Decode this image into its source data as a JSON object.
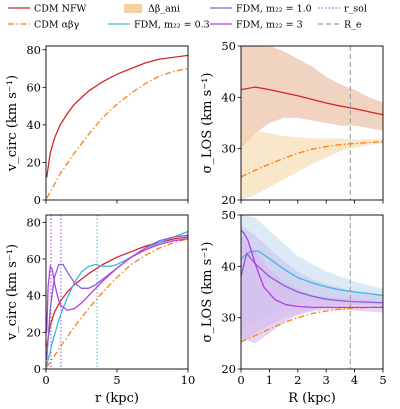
{
  "legend": [
    {
      "key": "cdm_nfw",
      "label": "CDM NFW",
      "color": "#d62728",
      "style": "solid"
    },
    {
      "key": "cdm_abg",
      "label": "CDM αβγ",
      "color": "#ff7f0e",
      "style": "dashdot"
    },
    {
      "key": "delta_beta",
      "label": "Δβ_ani",
      "color": "#f5cfa0",
      "style": "patch"
    },
    {
      "key": "fdm_03",
      "label": "FDM, m₂₂ = 0.3",
      "color": "#3fb6e8",
      "style": "solid"
    },
    {
      "key": "fdm_10",
      "label": "FDM, m₂₂ = 1.0",
      "color": "#8a5fd6",
      "style": "solid"
    },
    {
      "key": "fdm_3",
      "label": "FDM, m₂₂ = 3",
      "color": "#b63de8",
      "style": "solid"
    },
    {
      "key": "r_sol",
      "label": "r_sol",
      "color": "#7a6fd8",
      "style": "dotted"
    },
    {
      "key": "r_e",
      "label": "R_e",
      "color": "#9a9a9a",
      "style": "dashed"
    }
  ],
  "axis_labels": {
    "top_left_y": "v_circ (km s⁻¹)",
    "top_right_y": "σ_LOS (km s⁻¹)",
    "bottom_left_y": "v_circ (km s⁻¹)",
    "bottom_right_y": "σ_LOS (km s⁻¹)",
    "bottom_left_x": "r (kpc)",
    "bottom_right_x": "R (kpc)"
  },
  "chart_data": [
    {
      "id": "top_left",
      "type": "line",
      "xlim": [
        0,
        10
      ],
      "ylim": [
        0,
        82
      ],
      "yticks": [
        0,
        20,
        40,
        60,
        80
      ],
      "xticks": [
        0,
        5,
        10
      ],
      "series": [
        {
          "key": "cdm_nfw",
          "x": [
            0.05,
            0.3,
            0.6,
            1,
            1.5,
            2,
            3,
            4,
            5,
            6,
            7,
            8,
            9,
            10
          ],
          "y": [
            12,
            25,
            33,
            40,
            46,
            51,
            58,
            63,
            67,
            70,
            73,
            75,
            76,
            77
          ]
        },
        {
          "key": "cdm_abg",
          "x": [
            0.05,
            0.5,
            1,
            2,
            3,
            4,
            5,
            6,
            7,
            8,
            9,
            10
          ],
          "y": [
            1,
            7,
            14,
            25,
            35,
            44,
            51,
            57,
            62,
            66,
            68.5,
            70
          ]
        }
      ]
    },
    {
      "id": "top_right",
      "type": "line",
      "xlim": [
        0,
        5
      ],
      "ylim": [
        20,
        50
      ],
      "yticks": [
        20,
        30,
        40,
        50
      ],
      "xticks": [
        0,
        1,
        2,
        3,
        4,
        5
      ],
      "vlines": [
        {
          "key": "r_e",
          "x": 3.85
        }
      ],
      "bands": [
        {
          "key": "cdm_nfw",
          "color": "#e8b59a",
          "x": [
            0,
            0.5,
            1,
            1.5,
            2,
            2.5,
            3,
            3.5,
            4,
            4.5,
            5
          ],
          "upper": [
            50,
            50,
            50,
            49,
            47.5,
            46,
            44,
            42.5,
            41.5,
            40,
            39
          ],
          "lower": [
            30,
            33,
            35,
            36,
            36,
            35.5,
            35,
            34.5,
            34.5,
            34,
            33.5
          ]
        },
        {
          "key": "cdm_abg",
          "color": "#f5d7a6",
          "x": [
            0,
            0.5,
            1,
            1.5,
            2,
            2.5,
            3,
            3.5,
            4,
            4.5,
            5
          ],
          "upper": [
            34,
            33.5,
            33,
            32.5,
            32.2,
            32,
            32,
            32,
            31.8,
            31.8,
            31.8
          ],
          "lower": [
            20,
            21,
            22.5,
            24,
            25.5,
            27,
            28.3,
            29.5,
            30.2,
            30.7,
            31
          ]
        }
      ],
      "series": [
        {
          "key": "cdm_nfw",
          "x": [
            0,
            0.5,
            1,
            1.5,
            2,
            2.5,
            3,
            3.5,
            4,
            4.5,
            5
          ],
          "y": [
            41.5,
            42,
            41.5,
            40.9,
            40.3,
            39.6,
            38.9,
            38.3,
            37.8,
            37.2,
            36.6
          ]
        },
        {
          "key": "cdm_abg",
          "x": [
            0,
            0.5,
            1,
            1.5,
            2,
            2.5,
            3,
            3.5,
            4,
            4.5,
            5
          ],
          "y": [
            24.5,
            25.8,
            27,
            28.1,
            29.1,
            29.9,
            30.4,
            30.8,
            31,
            31.2,
            31.4
          ]
        }
      ]
    },
    {
      "id": "bottom_left",
      "type": "line",
      "xlim": [
        0,
        10
      ],
      "ylim": [
        0,
        84
      ],
      "yticks": [
        0,
        20,
        40,
        60,
        80
      ],
      "xticks": [
        0,
        5,
        10
      ],
      "vlines": [
        {
          "key": "fdm_3",
          "x": 0.35
        },
        {
          "key": "fdm_10",
          "x": 1.05
        },
        {
          "key": "fdm_03",
          "x": 3.6
        }
      ],
      "series": [
        {
          "key": "cdm_nfw",
          "x": [
            0.05,
            0.3,
            0.6,
            1,
            1.5,
            2,
            3,
            4,
            5,
            6,
            7,
            8,
            9,
            10
          ],
          "y": [
            12,
            24,
            31,
            37,
            42,
            46,
            52,
            57,
            61,
            64,
            67,
            69,
            71,
            72
          ]
        },
        {
          "key": "cdm_abg",
          "x": [
            0.05,
            0.5,
            1,
            2,
            3,
            4,
            5,
            6,
            7,
            8,
            9,
            10
          ],
          "y": [
            1,
            6,
            12,
            23,
            33,
            42,
            50,
            57,
            62,
            66,
            69,
            71
          ]
        },
        {
          "key": "fdm_03",
          "x": [
            0.05,
            0.5,
            1,
            1.5,
            2,
            2.5,
            3,
            3.5,
            4,
            4.5,
            5,
            6,
            7,
            8,
            9,
            10
          ],
          "y": [
            2,
            16,
            29,
            39,
            47,
            53,
            56,
            57,
            56,
            56,
            57,
            61,
            65,
            69,
            72,
            75
          ]
        },
        {
          "key": "fdm_10",
          "x": [
            0.05,
            0.3,
            0.6,
            0.9,
            1.2,
            1.5,
            2,
            2.5,
            3,
            3.5,
            4,
            5,
            6,
            7,
            8,
            9,
            10
          ],
          "y": [
            5,
            33,
            50,
            57,
            57,
            53,
            47,
            44,
            44,
            46,
            49,
            55,
            61,
            66,
            70,
            72,
            73
          ]
        },
        {
          "key": "fdm_3",
          "x": [
            0.05,
            0.15,
            0.3,
            0.45,
            0.6,
            0.8,
            1,
            1.5,
            2,
            2.5,
            3,
            3.5,
            4,
            5,
            6,
            7,
            8,
            9,
            10
          ],
          "y": [
            20,
            45,
            56,
            54,
            47,
            40,
            35,
            32,
            33,
            36,
            40,
            44,
            48,
            55,
            61,
            65,
            68,
            70,
            71
          ]
        }
      ]
    },
    {
      "id": "bottom_right",
      "type": "line",
      "xlim": [
        0,
        5
      ],
      "ylim": [
        20,
        50
      ],
      "yticks": [
        20,
        30,
        40,
        50
      ],
      "xticks": [
        0,
        1,
        2,
        3,
        4,
        5
      ],
      "vlines": [
        {
          "key": "r_e",
          "x": 3.85
        }
      ],
      "bands": [
        {
          "key": "fdm_03",
          "color": "#c5dcf2",
          "x": [
            0,
            0.5,
            1,
            1.5,
            2,
            2.5,
            3,
            3.5,
            4,
            4.5,
            5
          ],
          "upper": [
            50,
            49.5,
            47,
            44.5,
            42,
            40.5,
            39,
            38,
            37,
            36.3,
            35.7
          ],
          "lower": [
            28,
            29,
            30.5,
            32,
            32.8,
            33.2,
            33.4,
            33.3,
            33.2,
            33,
            32.8
          ]
        },
        {
          "key": "fdm_10",
          "color": "#c8c4ea",
          "x": [
            0,
            0.5,
            1,
            1.5,
            2,
            2.5,
            3,
            3.5,
            4,
            4.5,
            5
          ],
          "upper": [
            48,
            46,
            43.5,
            41,
            39,
            37.5,
            36.5,
            35.8,
            35.2,
            34.8,
            34.5
          ],
          "lower": [
            25,
            27,
            28.5,
            29.8,
            30.8,
            31.5,
            32,
            32.3,
            32.5,
            32.5,
            32.5
          ]
        },
        {
          "key": "fdm_3",
          "color": "#d9b6ef",
          "x": [
            0,
            0.5,
            1,
            1.5,
            2,
            2.5,
            3,
            3.5,
            4,
            4.5,
            5
          ],
          "upper": [
            46,
            43,
            39.5,
            37,
            35.5,
            34.5,
            34,
            33.8,
            33.6,
            33.4,
            33.2
          ],
          "lower": [
            26,
            25,
            27,
            29,
            30.5,
            31.2,
            31.5,
            31.5,
            31.4,
            31.2,
            31
          ]
        }
      ],
      "series": [
        {
          "key": "cdm_abg",
          "x": [
            0,
            0.5,
            1,
            1.5,
            2,
            2.5,
            3,
            3.5,
            4,
            4.5,
            5
          ],
          "y": [
            25.3,
            26.5,
            27.8,
            29,
            30,
            30.8,
            31.3,
            31.7,
            31.9,
            32,
            32.1
          ]
        },
        {
          "key": "fdm_03",
          "x": [
            0,
            0.3,
            0.6,
            1,
            1.5,
            2,
            2.5,
            3,
            3.5,
            4,
            4.5,
            5
          ],
          "y": [
            41.5,
            42.8,
            43,
            41.5,
            39.5,
            37.8,
            36.8,
            36,
            35.4,
            35,
            34.7,
            34.3
          ]
        },
        {
          "key": "fdm_10",
          "x": [
            0,
            0.2,
            0.5,
            1,
            1.5,
            2,
            2.5,
            3,
            3.5,
            4,
            4.5,
            5
          ],
          "y": [
            38,
            42.5,
            40.5,
            38,
            36.3,
            35,
            34.2,
            33.6,
            33.3,
            33.1,
            33,
            32.9
          ]
        },
        {
          "key": "fdm_3",
          "x": [
            0,
            0.1,
            0.25,
            0.5,
            0.8,
            1.2,
            1.6,
            2,
            2.5,
            3,
            3.5,
            4,
            4.5,
            5
          ],
          "y": [
            47,
            46.5,
            45,
            40.5,
            36,
            33.5,
            32.5,
            32.2,
            32,
            32,
            32,
            32,
            32,
            32
          ]
        }
      ]
    }
  ]
}
